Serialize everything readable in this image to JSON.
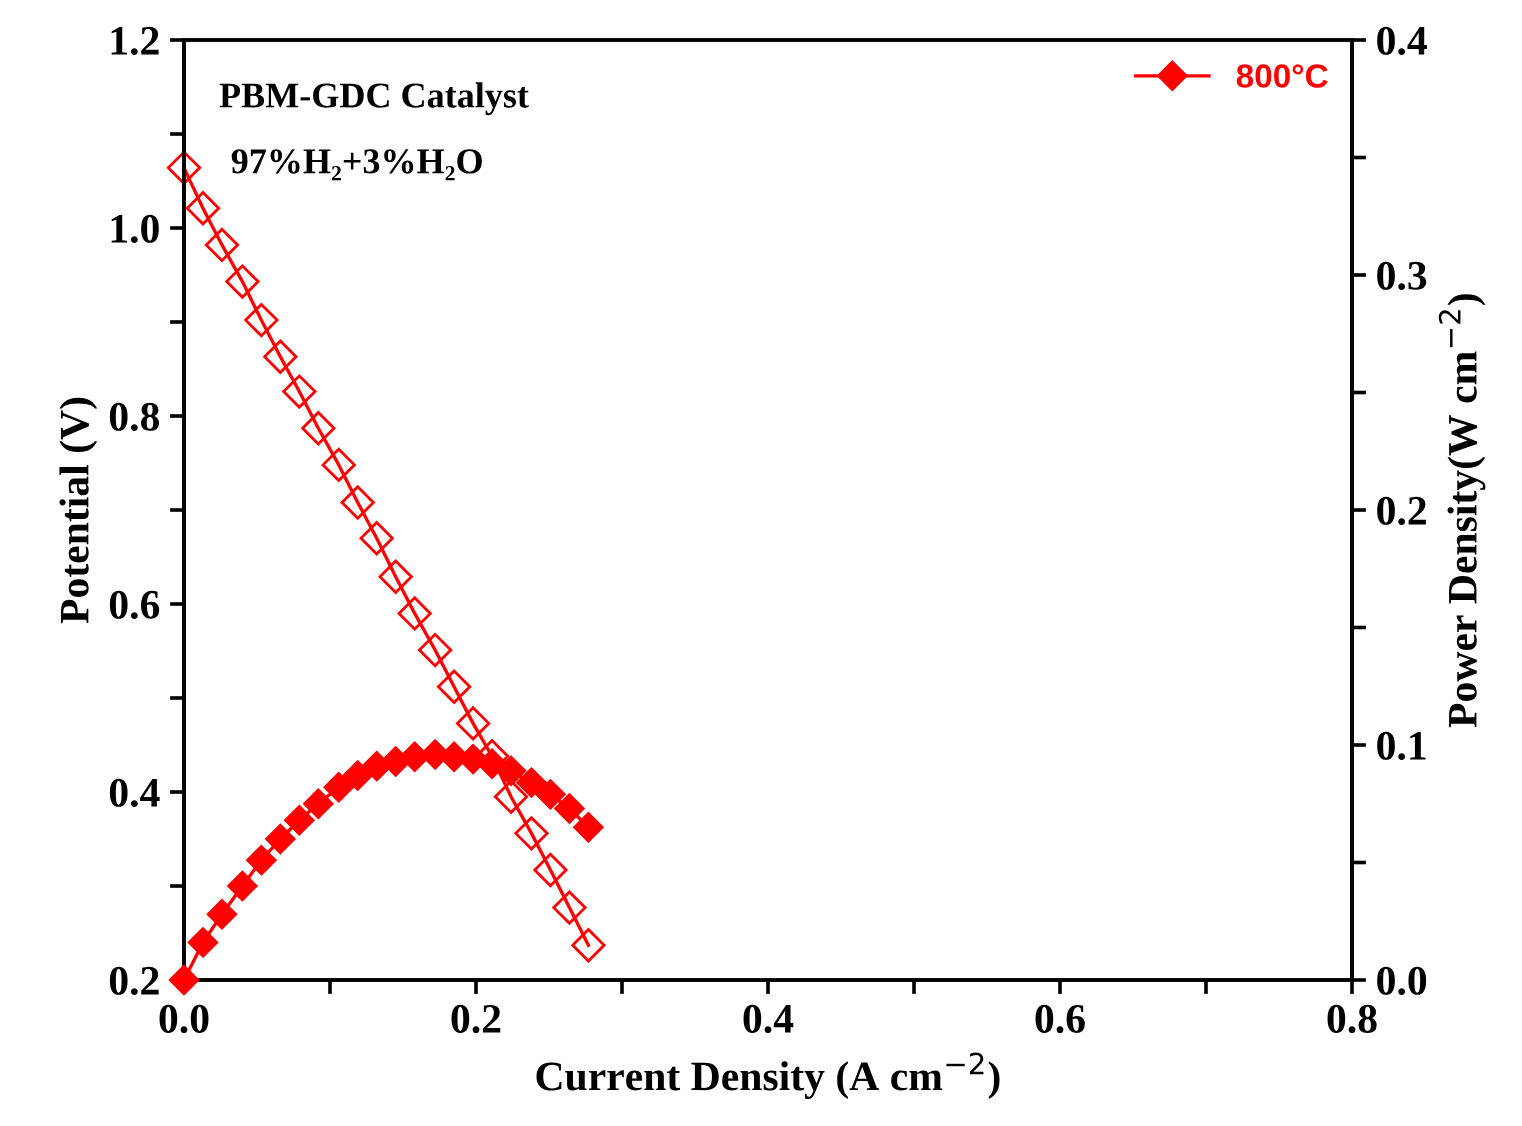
{
  "chart_data": {
    "type": "line",
    "xlabel": "Current Density (A cm$^{−2}$)",
    "ylabel": "Potential (V)",
    "y2label": "Power Density(W cm$^{−2}$)",
    "annotations": [
      "PBM-GDC Catalyst",
      "97%H₂+3%H₂O"
    ],
    "x": [
      0,
      0.013,
      0.026,
      0.04,
      0.053,
      0.066,
      0.079,
      0.092,
      0.106,
      0.119,
      0.132,
      0.145,
      0.158,
      0.172,
      0.185,
      0.198,
      0.211,
      0.224,
      0.238,
      0.251,
      0.264,
      0.277
    ],
    "series": [
      {
        "color": "#ff0000",
        "axis": "y",
        "values": [
          1.064,
          1.021,
          0.982,
          0.943,
          0.902,
          0.863,
          0.826,
          0.787,
          0.748,
          0.708,
          0.67,
          0.629,
          0.59,
          0.551,
          0.512,
          0.473,
          0.438,
          0.395,
          0.356,
          0.317,
          0.277,
          0.237
        ]
      },
      {
        "name": "800°C",
        "color": "#ff0000",
        "axis": "y2",
        "values": [
          0,
          0.016,
          0.028,
          0.04,
          0.051,
          0.06,
          0.068,
          0.075,
          0.082,
          0.087,
          0.091,
          0.093,
          0.095,
          0.096,
          0.095,
          0.094,
          0.092,
          0.089,
          0.084,
          0.079,
          0.073,
          0.065
        ]
      }
    ],
    "xlim": [
      0,
      0.8
    ],
    "ylim": [
      0.2,
      1.2
    ],
    "y2lim": [
      0,
      0.4
    ],
    "xticks": [
      {
        "value": 0,
        "label": "0.0"
      },
      {
        "value": 0.1,
        "label": null
      },
      0.2,
      {
        "value": 0.3,
        "label": null
      },
      0.4,
      {
        "value": 0.5,
        "label": null
      },
      0.6,
      {
        "value": 0.7,
        "label": null
      },
      0.8
    ],
    "yticks": [
      0.2,
      {
        "value": 0.3,
        "label": null
      },
      0.4,
      {
        "value": 0.5,
        "label": null
      },
      0.6,
      {
        "value": 0.7,
        "label": null
      },
      0.8,
      {
        "value": 0.9,
        "label": null
      },
      {
        "value": 1.0,
        "label": "1.0"
      },
      {
        "value": 1.1,
        "label": null
      },
      1.2
    ],
    "y2ticks": [
      {
        "value": 0,
        "label": "0.0"
      },
      {
        "value": 0.05,
        "label": null
      },
      0.1,
      {
        "value": 0.15,
        "label": null
      },
      0.2,
      {
        "value": 0.25,
        "label": null
      },
      0.3,
      {
        "value": 0.35,
        "label": null
      },
      0.4
    ],
    "marker": "diamond",
    "line_style": "solid",
    "legend": "top right",
    "grid": false
  }
}
